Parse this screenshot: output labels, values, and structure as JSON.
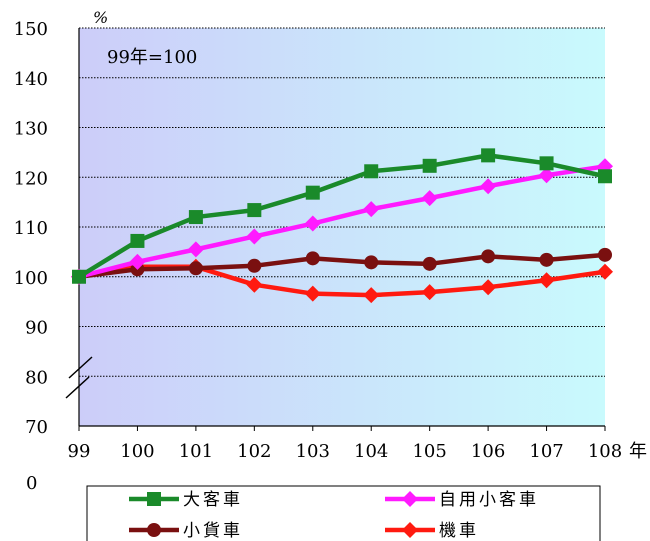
{
  "chart_data": {
    "type": "line",
    "y_unit": "%",
    "annotation": "99年=100",
    "x_unit": "年",
    "categories": [
      "99",
      "100",
      "101",
      "102",
      "103",
      "104",
      "105",
      "106",
      "107",
      "108"
    ],
    "ylim": [
      70,
      150
    ],
    "y_ticks": [
      "150",
      "140",
      "130",
      "120",
      "110",
      "100",
      "90",
      "80",
      "70"
    ],
    "y_zero_label": "0",
    "axis_break": true,
    "grid": true,
    "legend_position": "bottom",
    "series": [
      {
        "name": "大客車",
        "color": "#1a8a2a",
        "marker": "square",
        "values": [
          100,
          107.2,
          112,
          113.4,
          116.9,
          121.2,
          122.3,
          124.4,
          122.8,
          120.2
        ]
      },
      {
        "name": "自用小客車",
        "color": "#ff1aff",
        "marker": "diamond",
        "values": [
          100,
          103,
          105.5,
          108.1,
          110.7,
          113.6,
          115.8,
          118.2,
          120.4,
          122.2
        ]
      },
      {
        "name": "小貨車",
        "color": "#7a1010",
        "marker": "circle",
        "values": [
          100,
          101.5,
          101.7,
          102.2,
          103.7,
          102.9,
          102.6,
          104.1,
          103.4,
          104.4
        ]
      },
      {
        "name": "機車",
        "color": "#ff1a10",
        "marker": "diamond",
        "values": [
          100,
          102,
          102,
          98.4,
          96.6,
          96.3,
          96.9,
          97.9,
          99.3,
          101
        ]
      }
    ]
  }
}
